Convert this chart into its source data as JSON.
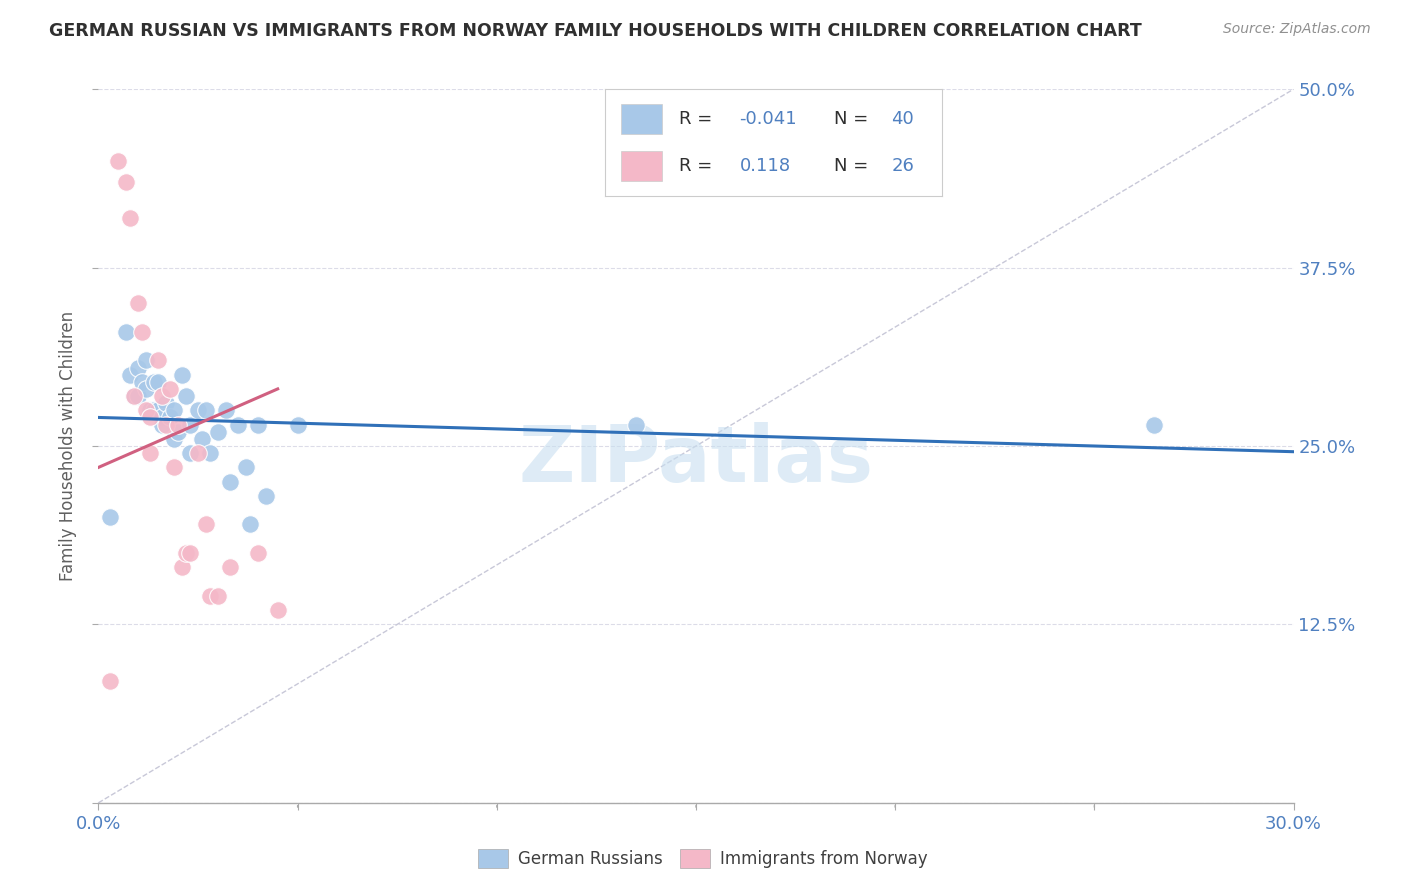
{
  "title": "GERMAN RUSSIAN VS IMMIGRANTS FROM NORWAY FAMILY HOUSEHOLDS WITH CHILDREN CORRELATION CHART",
  "source": "Source: ZipAtlas.com",
  "ylabel": "Family Households with Children",
  "x_min": 0.0,
  "x_max": 0.3,
  "y_min": 0.0,
  "y_max": 0.5,
  "x_ticks": [
    0.0,
    0.05,
    0.1,
    0.15,
    0.2,
    0.25,
    0.3
  ],
  "y_ticks": [
    0.0,
    0.125,
    0.25,
    0.375,
    0.5
  ],
  "y_tick_labels": [
    "",
    "12.5%",
    "25.0%",
    "37.5%",
    "50.0%"
  ],
  "legend_labels": [
    "German Russians",
    "Immigrants from Norway"
  ],
  "legend_r": [
    -0.041,
    0.118
  ],
  "legend_n": [
    40,
    26
  ],
  "blue_color": "#a8c8e8",
  "pink_color": "#f4b8c8",
  "blue_line_color": "#3070b8",
  "pink_line_color": "#d06080",
  "dashed_line_color": "#c8c8d8",
  "watermark": "ZIPatlas",
  "blue_scatter_x": [
    0.003,
    0.007,
    0.008,
    0.009,
    0.01,
    0.01,
    0.011,
    0.012,
    0.012,
    0.013,
    0.014,
    0.014,
    0.015,
    0.015,
    0.016,
    0.016,
    0.017,
    0.018,
    0.019,
    0.019,
    0.02,
    0.021,
    0.022,
    0.023,
    0.023,
    0.025,
    0.026,
    0.027,
    0.028,
    0.03,
    0.032,
    0.033,
    0.035,
    0.037,
    0.038,
    0.04,
    0.042,
    0.05,
    0.135,
    0.265
  ],
  "blue_scatter_y": [
    0.2,
    0.33,
    0.3,
    0.285,
    0.305,
    0.285,
    0.295,
    0.31,
    0.29,
    0.275,
    0.295,
    0.275,
    0.295,
    0.275,
    0.27,
    0.265,
    0.28,
    0.27,
    0.275,
    0.255,
    0.26,
    0.3,
    0.285,
    0.265,
    0.245,
    0.275,
    0.255,
    0.275,
    0.245,
    0.26,
    0.275,
    0.225,
    0.265,
    0.235,
    0.195,
    0.265,
    0.215,
    0.265,
    0.265,
    0.265
  ],
  "pink_scatter_x": [
    0.003,
    0.005,
    0.007,
    0.008,
    0.009,
    0.01,
    0.011,
    0.012,
    0.013,
    0.013,
    0.015,
    0.016,
    0.017,
    0.018,
    0.019,
    0.02,
    0.021,
    0.022,
    0.023,
    0.025,
    0.027,
    0.028,
    0.03,
    0.033,
    0.04,
    0.045
  ],
  "pink_scatter_y": [
    0.085,
    0.45,
    0.435,
    0.41,
    0.285,
    0.35,
    0.33,
    0.275,
    0.27,
    0.245,
    0.31,
    0.285,
    0.265,
    0.29,
    0.235,
    0.265,
    0.165,
    0.175,
    0.175,
    0.245,
    0.195,
    0.145,
    0.145,
    0.165,
    0.175,
    0.135
  ],
  "blue_line_x": [
    0.0,
    0.3
  ],
  "blue_line_y": [
    0.27,
    0.246
  ],
  "pink_line_x": [
    0.0,
    0.045
  ],
  "pink_line_y": [
    0.235,
    0.29
  ],
  "dashed_line_x": [
    0.0,
    0.3
  ],
  "dashed_line_y": [
    0.0,
    0.5
  ],
  "grid_color": "#dcdce8",
  "grid_style": "--",
  "background_color": "#ffffff",
  "title_color": "#303030",
  "source_color": "#909090",
  "tick_color": "#5080c0",
  "ylabel_color": "#606060"
}
